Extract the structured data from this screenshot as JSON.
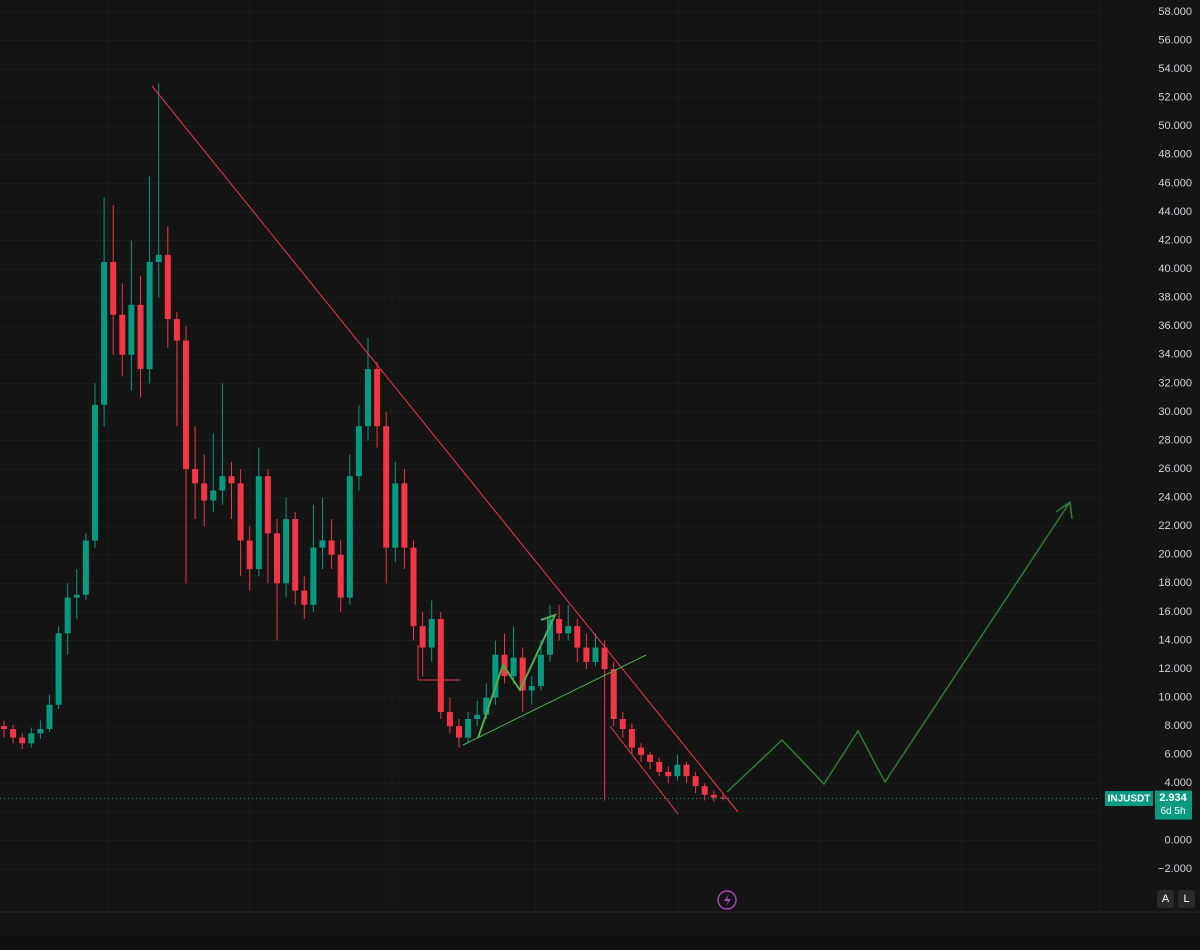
{
  "chart_data": {
    "type": "candlestick",
    "symbol": "INJUSDT",
    "last_price": 2.934,
    "countdown": "6d 5h",
    "up_color": "#089981",
    "down_color": "#f23645",
    "grid": true,
    "ylim": [
      -2,
      58
    ],
    "yticks": [
      {
        "value": 58,
        "label": "58.000"
      },
      {
        "value": 56,
        "label": "56.000"
      },
      {
        "value": 54,
        "label": "54.000"
      },
      {
        "value": 52,
        "label": "52.000"
      },
      {
        "value": 50,
        "label": "50.000"
      },
      {
        "value": 48,
        "label": "48.000"
      },
      {
        "value": 46,
        "label": "46.000"
      },
      {
        "value": 44,
        "label": "44.000"
      },
      {
        "value": 42,
        "label": "42.000"
      },
      {
        "value": 40,
        "label": "40.000"
      },
      {
        "value": 38,
        "label": "38.000"
      },
      {
        "value": 36,
        "label": "36.000"
      },
      {
        "value": 34,
        "label": "34.000"
      },
      {
        "value": 32,
        "label": "32.000"
      },
      {
        "value": 30,
        "label": "30.000"
      },
      {
        "value": 28,
        "label": "28.000"
      },
      {
        "value": 26,
        "label": "26.000"
      },
      {
        "value": 24,
        "label": "24.000"
      },
      {
        "value": 22,
        "label": "22.000"
      },
      {
        "value": 20,
        "label": "20.000"
      },
      {
        "value": 18,
        "label": "18.000"
      },
      {
        "value": 16,
        "label": "16.000"
      },
      {
        "value": 14,
        "label": "14.000"
      },
      {
        "value": 12,
        "label": "12.000"
      },
      {
        "value": 10,
        "label": "10.000"
      },
      {
        "value": 8,
        "label": "8.000"
      },
      {
        "value": 6,
        "label": "6.000"
      },
      {
        "value": 4,
        "label": "4.000"
      },
      {
        "value": 2,
        "label": "2.000"
      },
      {
        "value": 0,
        "label": "0.000"
      },
      {
        "value": -2,
        "label": "−2.000"
      }
    ],
    "open": [
      8.0,
      7.8,
      7.2,
      6.8,
      7.5,
      7.8,
      9.5,
      14.5,
      17.0,
      17.2,
      21.0,
      30.5,
      40.5,
      36.8,
      34.0,
      37.5,
      33.0,
      40.5,
      41.0,
      36.5,
      35.0,
      26.0,
      25.0,
      23.8,
      24.5,
      25.5,
      25.0,
      21.0,
      19.0,
      25.5,
      21.5,
      18.0,
      22.5,
      17.5,
      16.5,
      20.5,
      21.0,
      20.0,
      17.0,
      25.5,
      29.0,
      33.0,
      29.0,
      20.5,
      25.0,
      20.5,
      15.0,
      13.5,
      15.5,
      9.0,
      8.0,
      7.2,
      8.5,
      8.8,
      10.0,
      13.0,
      11.5,
      12.8,
      10.5,
      10.8,
      13.0,
      15.5,
      14.5,
      15.0,
      13.5,
      12.5,
      13.5,
      12.0,
      8.5,
      7.8,
      6.5,
      6.0,
      5.5,
      4.8,
      4.5,
      5.3,
      4.5,
      3.8,
      3.2,
      3.0
    ],
    "high": [
      8.4,
      8.1,
      7.5,
      7.9,
      8.4,
      10.2,
      15.0,
      18.0,
      19.0,
      21.5,
      32.0,
      45.0,
      44.5,
      39.0,
      42.0,
      39.5,
      46.5,
      53.0,
      43.0,
      37.0,
      36.0,
      29.0,
      27.0,
      28.5,
      32.0,
      26.5,
      26.0,
      22.0,
      27.5,
      26.0,
      22.5,
      24.0,
      23.0,
      18.5,
      23.5,
      24.0,
      22.5,
      21.0,
      27.0,
      30.5,
      35.2,
      33.5,
      30.0,
      26.5,
      26.0,
      21.0,
      16.0,
      16.8,
      16.0,
      10.0,
      8.5,
      9.0,
      9.8,
      11.0,
      14.0,
      14.5,
      15.0,
      13.5,
      11.5,
      14.0,
      16.5,
      16.5,
      16.5,
      15.5,
      14.5,
      14.5,
      14.0,
      12.5,
      9.0,
      8.2,
      6.8,
      6.2,
      5.8,
      5.2,
      6.0,
      5.5,
      4.8,
      4.0,
      3.5,
      3.2
    ],
    "low": [
      7.2,
      6.8,
      6.4,
      6.5,
      7.1,
      7.6,
      9.2,
      13.0,
      15.5,
      16.8,
      20.5,
      29.0,
      34.0,
      32.5,
      31.5,
      31.0,
      32.0,
      38.0,
      34.5,
      29.0,
      18.0,
      22.5,
      22.0,
      23.0,
      23.5,
      22.5,
      18.5,
      17.5,
      18.5,
      18.0,
      14.0,
      17.0,
      16.5,
      15.5,
      16.0,
      19.0,
      19.0,
      16.0,
      16.5,
      24.5,
      28.0,
      27.5,
      18.0,
      19.5,
      19.0,
      14.0,
      11.5,
      12.5,
      8.5,
      7.5,
      6.5,
      6.8,
      8.0,
      8.5,
      9.5,
      11.0,
      11.0,
      9.0,
      9.5,
      10.5,
      12.5,
      14.0,
      14.0,
      12.5,
      12.0,
      12.2,
      2.8,
      8.0,
      7.2,
      6.0,
      5.5,
      5.0,
      4.5,
      4.0,
      4.2,
      4.0,
      3.3,
      2.8,
      2.7,
      2.8
    ],
    "close": [
      7.8,
      7.2,
      6.8,
      7.5,
      7.8,
      9.5,
      14.5,
      17.0,
      17.2,
      21.0,
      30.5,
      40.5,
      36.8,
      34.0,
      37.5,
      33.0,
      40.5,
      41.0,
      36.5,
      35.0,
      26.0,
      25.0,
      23.8,
      24.5,
      25.5,
      25.0,
      21.0,
      19.0,
      25.5,
      21.5,
      18.0,
      22.5,
      17.5,
      16.5,
      20.5,
      21.0,
      20.0,
      17.0,
      25.5,
      29.0,
      33.0,
      29.0,
      20.5,
      25.0,
      20.5,
      15.0,
      13.5,
      15.5,
      9.0,
      8.0,
      7.2,
      8.5,
      8.8,
      10.0,
      13.0,
      11.5,
      12.8,
      10.5,
      10.8,
      13.0,
      15.5,
      14.5,
      15.0,
      13.5,
      12.5,
      13.5,
      12.0,
      8.5,
      7.8,
      6.5,
      6.0,
      5.5,
      4.8,
      4.5,
      5.3,
      4.5,
      3.8,
      3.2,
      3.0,
      2.934
    ]
  },
  "ui": {
    "buttons": [
      "A",
      "L"
    ]
  }
}
